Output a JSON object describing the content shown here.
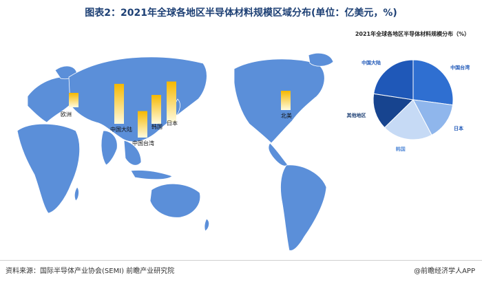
{
  "title": "图表2：2021年全球各地区半导体材料规模区域分布(单位：亿美元，%)",
  "pie_title": "2021年全球各地区半导体材料规模分布（%）",
  "footer": {
    "source": "资料来源：国际半导体产业协会(SEMI) 前瞻产业研究院",
    "brand": "@前瞻经济学人APP"
  },
  "colors": {
    "map_land": "#5b8fd9",
    "title_color": "#1c3f74",
    "bar_top": "#f6b800",
    "bar_bottom": "#fffbe0"
  },
  "chart_data": [
    {
      "type": "bar",
      "title": "",
      "categories": [
        "欧洲",
        "中国大陆",
        "中国台湾",
        "韩国",
        "日本",
        "北美"
      ],
      "values": [
        30,
        83,
        55,
        60,
        85,
        40
      ]
    },
    {
      "type": "pie",
      "title": "2021年全球各地区半导体材料规模分布（%）",
      "slices": [
        {
          "label": "中国台湾",
          "value": 27.1,
          "color": "#2f6fd1"
        },
        {
          "label": "日本",
          "value": 15.2,
          "color": "#8fb6ec"
        },
        {
          "label": "韩国",
          "value": 20.4,
          "color": "#c6daf5"
        },
        {
          "label": "其他地区",
          "value": 14.7,
          "color": "#17448f"
        },
        {
          "label": "中国大陆",
          "value": 22.6,
          "color": "#1f58b8"
        }
      ]
    }
  ]
}
